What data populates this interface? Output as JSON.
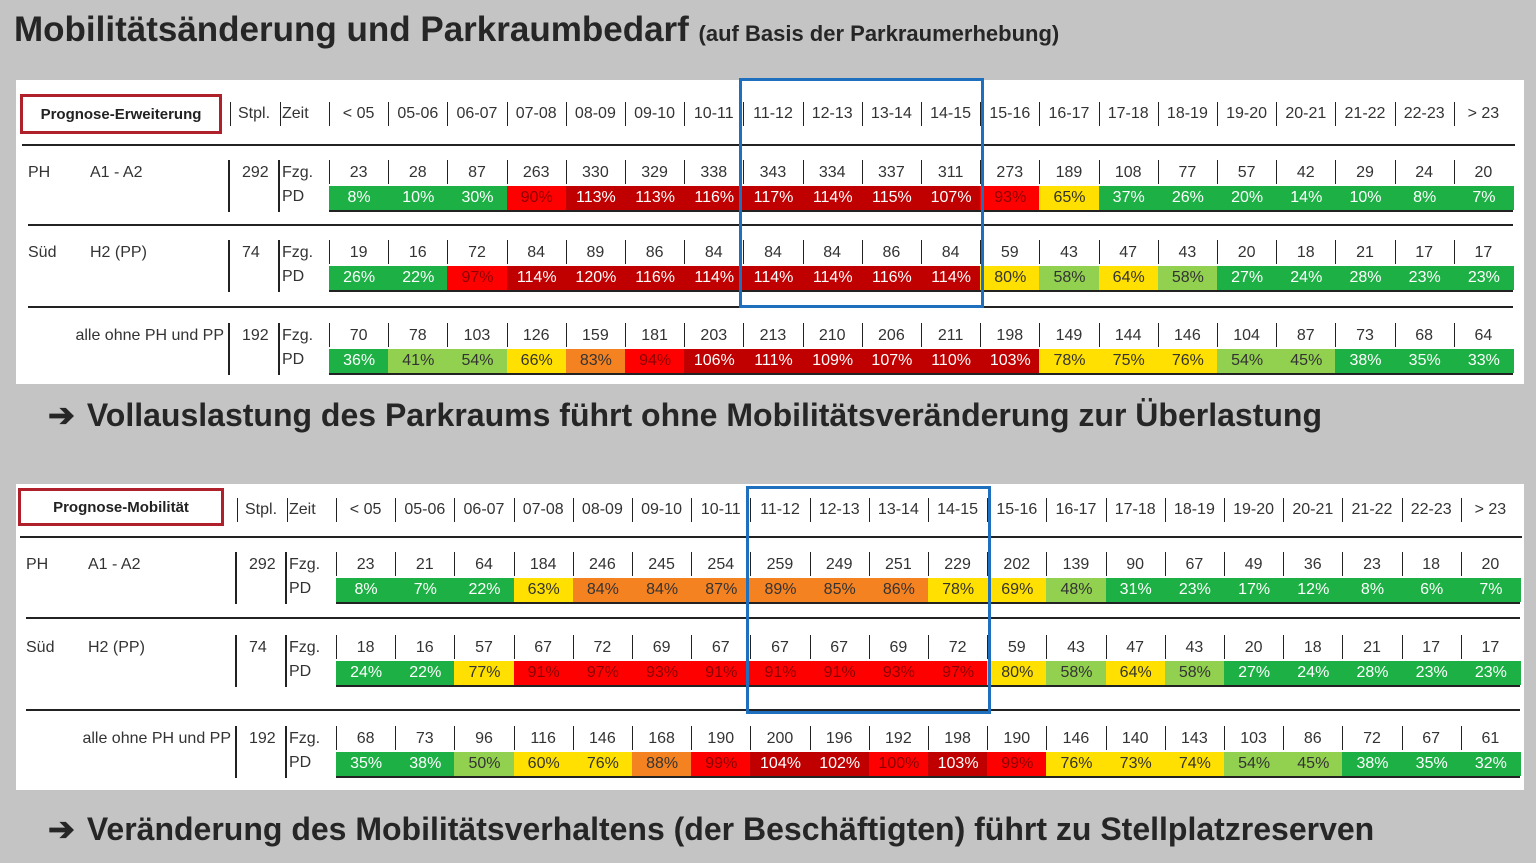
{
  "title": "Mobilitätsänderung und Parkraumbedarf",
  "subtitle": "(auf Basis der Parkraumerhebung)",
  "arrow_icon": "➔",
  "colors": {
    "green": "#1db145",
    "lightgreen": "#92d050",
    "yellow": "#ffe000",
    "orange": "#f58220",
    "red": "#ff0000",
    "darkred": "#c00000",
    "frame": "#1f6fbf",
    "tag_border": "#b0202a"
  },
  "columns": {
    "stpl": "Stpl.",
    "zeit": "Zeit",
    "times": [
      "< 05",
      "05-06",
      "06-07",
      "07-08",
      "08-09",
      "09-10",
      "10-11",
      "11-12",
      "12-13",
      "13-14",
      "14-15",
      "15-16",
      "16-17",
      "17-18",
      "18-19",
      "19-20",
      "20-21",
      "21-22",
      "22-23",
      "> 23"
    ],
    "fzg": "Fzg.",
    "pd": "PD"
  },
  "tables": [
    {
      "tag": "Prognose-Erweiterung",
      "conclusion": "Vollauslastung des Parkraums führt ohne Mobilitätsveränderung zur Überlastung",
      "rows": [
        {
          "label_a": "PH",
          "label_b": "A1 - A2",
          "stpl": "292",
          "fzg": [
            "23",
            "28",
            "87",
            "263",
            "330",
            "329",
            "338",
            "343",
            "334",
            "337",
            "311",
            "273",
            "189",
            "108",
            "77",
            "57",
            "42",
            "29",
            "24",
            "20"
          ],
          "pd": [
            "8%",
            "10%",
            "30%",
            "90%",
            "113%",
            "113%",
            "116%",
            "117%",
            "114%",
            "115%",
            "107%",
            "93%",
            "65%",
            "37%",
            "26%",
            "20%",
            "14%",
            "10%",
            "8%",
            "7%"
          ],
          "pd_colors": [
            "green",
            "green",
            "green",
            "red",
            "darkred",
            "darkred",
            "darkred",
            "darkred",
            "darkred",
            "darkred",
            "darkred",
            "red",
            "yellow",
            "green",
            "green",
            "green",
            "green",
            "green",
            "green",
            "green"
          ]
        },
        {
          "label_a": "Süd",
          "label_b": "H2 (PP)",
          "stpl": "74",
          "fzg": [
            "19",
            "16",
            "72",
            "84",
            "89",
            "86",
            "84",
            "84",
            "84",
            "86",
            "84",
            "59",
            "43",
            "47",
            "43",
            "20",
            "18",
            "21",
            "17",
            "17"
          ],
          "pd": [
            "26%",
            "22%",
            "97%",
            "114%",
            "120%",
            "116%",
            "114%",
            "114%",
            "114%",
            "116%",
            "114%",
            "80%",
            "58%",
            "64%",
            "58%",
            "27%",
            "24%",
            "28%",
            "23%",
            "23%"
          ],
          "pd_colors": [
            "green",
            "green",
            "red",
            "darkred",
            "darkred",
            "darkred",
            "darkred",
            "darkred",
            "darkred",
            "darkred",
            "darkred",
            "yellow",
            "lightgreen",
            "yellow",
            "lightgreen",
            "green",
            "green",
            "green",
            "green",
            "green"
          ]
        },
        {
          "label_a": "",
          "label_b": "alle ohne PH und PP",
          "stpl": "192",
          "fzg": [
            "70",
            "78",
            "103",
            "126",
            "159",
            "181",
            "203",
            "213",
            "210",
            "206",
            "211",
            "198",
            "149",
            "144",
            "146",
            "104",
            "87",
            "73",
            "68",
            "64"
          ],
          "pd": [
            "36%",
            "41%",
            "54%",
            "66%",
            "83%",
            "94%",
            "106%",
            "111%",
            "109%",
            "107%",
            "110%",
            "103%",
            "78%",
            "75%",
            "76%",
            "54%",
            "45%",
            "38%",
            "35%",
            "33%"
          ],
          "pd_colors": [
            "green",
            "lightgreen",
            "lightgreen",
            "yellow",
            "orange",
            "red",
            "darkred",
            "darkred",
            "darkred",
            "darkred",
            "darkred",
            "darkred",
            "yellow",
            "yellow",
            "yellow",
            "lightgreen",
            "lightgreen",
            "green",
            "green",
            "green"
          ]
        }
      ]
    },
    {
      "tag": "Prognose-Mobilität",
      "conclusion": "Veränderung des Mobilitätsverhaltens (der Beschäftigten) führt zu Stellplatzreserven",
      "rows": [
        {
          "label_a": "PH",
          "label_b": "A1 - A2",
          "stpl": "292",
          "fzg": [
            "23",
            "21",
            "64",
            "184",
            "246",
            "245",
            "254",
            "259",
            "249",
            "251",
            "229",
            "202",
            "139",
            "90",
            "67",
            "49",
            "36",
            "23",
            "18",
            "20"
          ],
          "pd": [
            "8%",
            "7%",
            "22%",
            "63%",
            "84%",
            "84%",
            "87%",
            "89%",
            "85%",
            "86%",
            "78%",
            "69%",
            "48%",
            "31%",
            "23%",
            "17%",
            "12%",
            "8%",
            "6%",
            "7%"
          ],
          "pd_colors": [
            "green",
            "green",
            "green",
            "yellow",
            "orange",
            "orange",
            "orange",
            "orange",
            "orange",
            "orange",
            "yellow",
            "yellow",
            "lightgreen",
            "green",
            "green",
            "green",
            "green",
            "green",
            "green",
            "green"
          ]
        },
        {
          "label_a": "Süd",
          "label_b": "H2 (PP)",
          "stpl": "74",
          "fzg": [
            "18",
            "16",
            "57",
            "67",
            "72",
            "69",
            "67",
            "67",
            "67",
            "69",
            "72",
            "59",
            "43",
            "47",
            "43",
            "20",
            "18",
            "21",
            "17",
            "17"
          ],
          "pd": [
            "24%",
            "22%",
            "77%",
            "91%",
            "97%",
            "93%",
            "91%",
            "91%",
            "91%",
            "93%",
            "97%",
            "80%",
            "58%",
            "64%",
            "58%",
            "27%",
            "24%",
            "28%",
            "23%",
            "23%"
          ],
          "pd_colors": [
            "green",
            "green",
            "yellow",
            "red",
            "red",
            "red",
            "red",
            "red",
            "red",
            "red",
            "red",
            "yellow",
            "lightgreen",
            "yellow",
            "lightgreen",
            "green",
            "green",
            "green",
            "green",
            "green"
          ]
        },
        {
          "label_a": "",
          "label_b": "alle ohne PH und PP",
          "stpl": "192",
          "fzg": [
            "68",
            "73",
            "96",
            "116",
            "146",
            "168",
            "190",
            "200",
            "196",
            "192",
            "198",
            "190",
            "146",
            "140",
            "143",
            "103",
            "86",
            "72",
            "67",
            "61"
          ],
          "pd": [
            "35%",
            "38%",
            "50%",
            "60%",
            "76%",
            "88%",
            "99%",
            "104%",
            "102%",
            "100%",
            "103%",
            "99%",
            "76%",
            "73%",
            "74%",
            "54%",
            "45%",
            "38%",
            "35%",
            "32%"
          ],
          "pd_colors": [
            "green",
            "green",
            "lightgreen",
            "yellow",
            "yellow",
            "orange",
            "red",
            "darkred",
            "darkred",
            "red",
            "darkred",
            "red",
            "yellow",
            "yellow",
            "yellow",
            "lightgreen",
            "lightgreen",
            "green",
            "green",
            "green"
          ]
        }
      ]
    }
  ]
}
